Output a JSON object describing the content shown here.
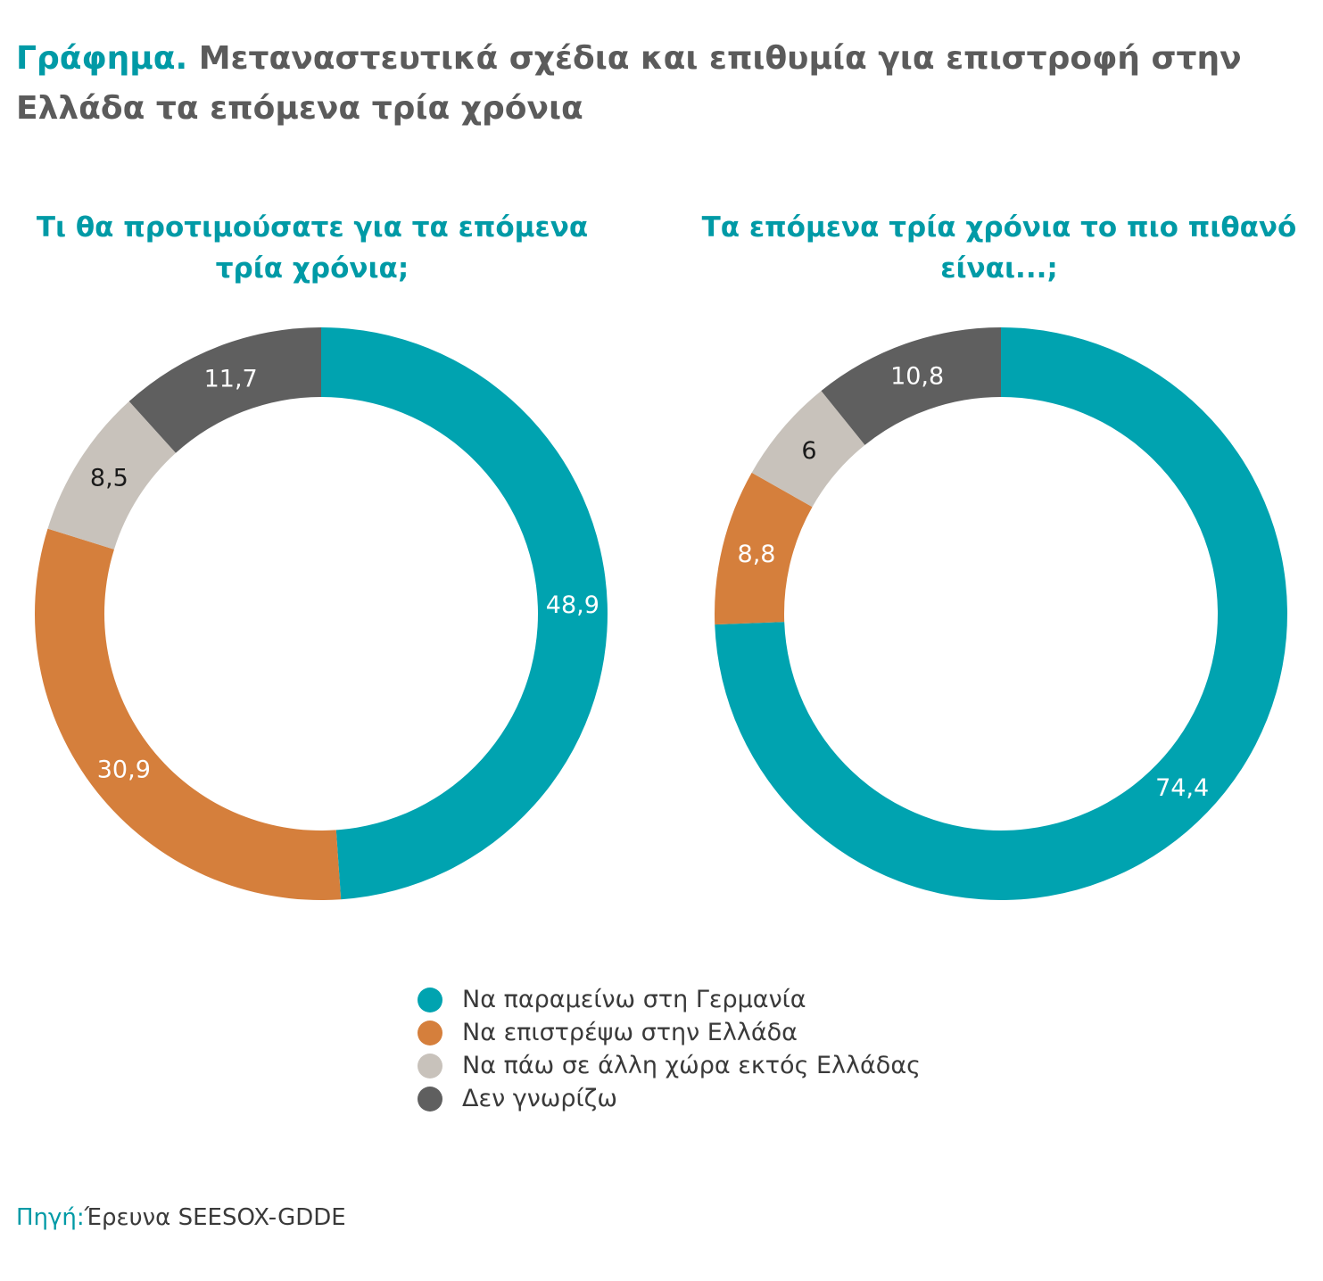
{
  "title": {
    "prefix": "Γράφημα.",
    "text": "Μεταναστευτικά σχέδια και επιθυμία για επιστροφή στην Ελλάδα τα επόμενα τρία χρόνια"
  },
  "legend": [
    {
      "label": "Να παραμείνω στη Γερμανία",
      "color": "#00a3b0"
    },
    {
      "label": "Να επιστρέψω στην Ελλάδα",
      "color": "#d57f3c"
    },
    {
      "label": "Να πάω σε άλλη χώρα εκτός Ελλάδας",
      "color": "#c8c2bb"
    },
    {
      "label": "Δεν γνωρίζω",
      "color": "#5f5f5f"
    }
  ],
  "chart_data": [
    {
      "type": "pie",
      "variant": "donut",
      "title": "Τι θα προτιμούσατε για τα επόμενα τρία χρόνια;",
      "categories": [
        "Να παραμείνω στη Γερμανία",
        "Να επιστρέψω στην Ελλάδα",
        "Να πάω σε άλλη χώρα εκτός Ελλάδας",
        "Δεν γνωρίζω"
      ],
      "values": [
        48.9,
        30.9,
        8.5,
        11.7
      ],
      "labels": [
        "48,9",
        "30,9",
        "8,5",
        "11,7"
      ]
    },
    {
      "type": "pie",
      "variant": "donut",
      "title": "Τα επόμενα τρία χρόνια το πιο πιθανό είναι...;",
      "categories": [
        "Να παραμείνω στη Γερμανία",
        "Να επιστρέψω στην Ελλάδα",
        "Να πάω σε άλλη χώρα εκτός Ελλάδας",
        "Δεν γνωρίζω"
      ],
      "values": [
        74.4,
        8.8,
        6,
        10.8
      ],
      "labels": [
        "74,4",
        "8,8",
        "6",
        "10,8"
      ]
    }
  ],
  "label_colors": [
    "#ffffff",
    "#ffffff",
    "#1a1a1a",
    "#ffffff"
  ],
  "source": {
    "label": "Πηγή:",
    "text": "Έρευνα SEESOX-GDDE"
  }
}
